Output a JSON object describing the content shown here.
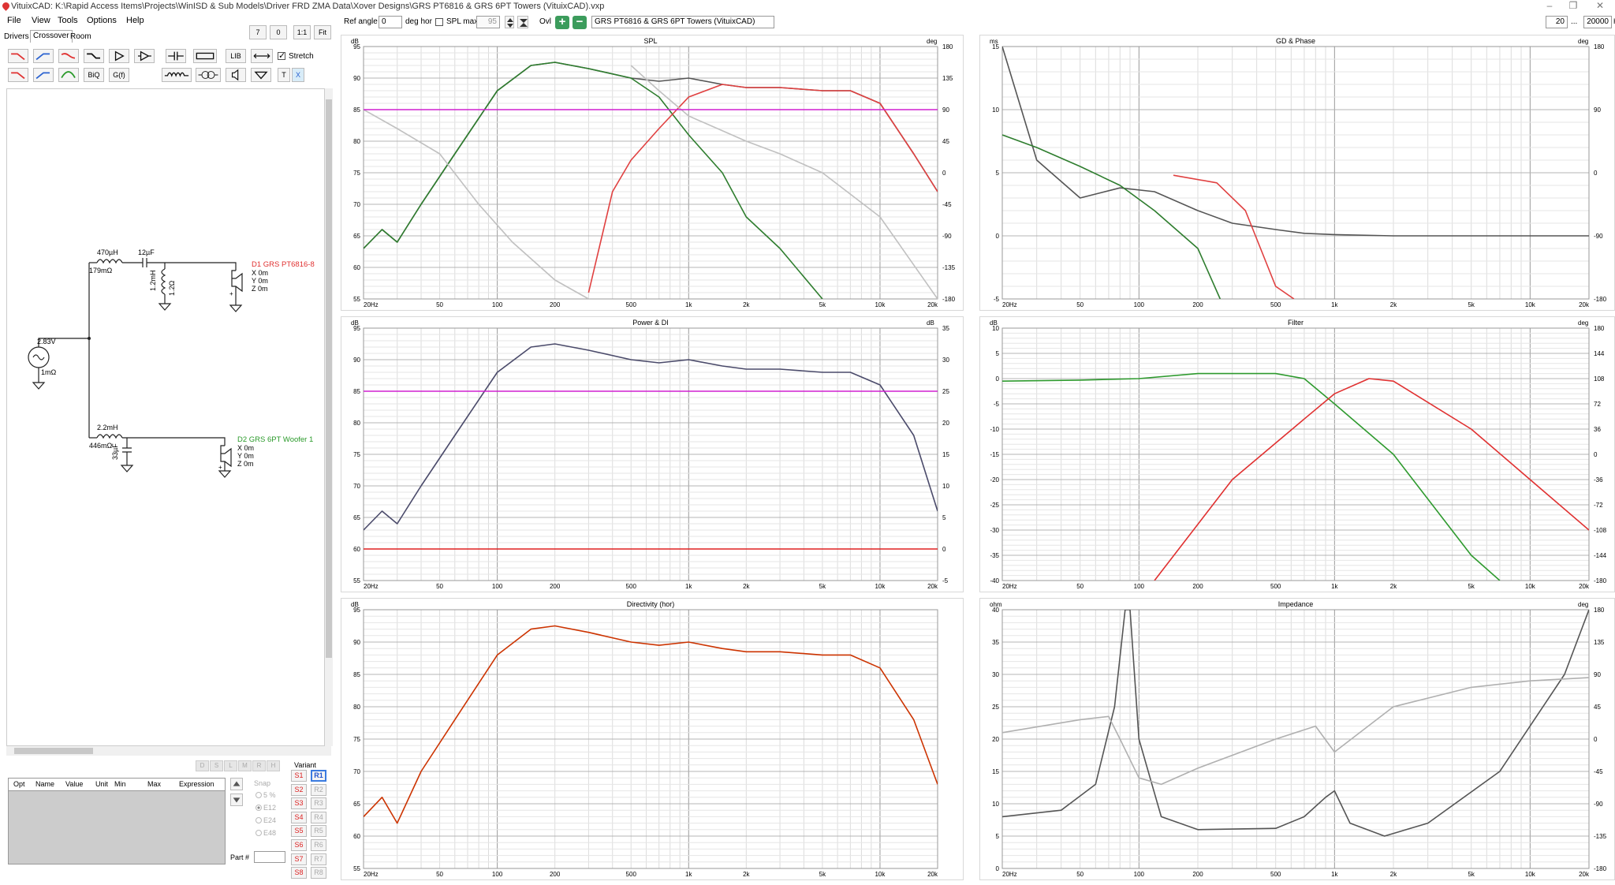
{
  "window": {
    "title": "VituixCAD: K:\\Rapid Access Items\\Projects\\WinISD & Sub Models\\Driver FRD ZMA Data\\Xover Designs\\GRS PT6816 & GRS 6PT Towers (VituixCAD).vxp",
    "minimize": "–",
    "restore": "❐",
    "close": "✕"
  },
  "menu": [
    "File",
    "View",
    "Tools",
    "Options",
    "Help"
  ],
  "tabs": [
    {
      "label": "Drivers"
    },
    {
      "label": "Crossover",
      "active": true
    },
    {
      "label": "Room"
    }
  ],
  "crossover_tools": {
    "row1_labels": [
      "LIB",
      "Stretch"
    ],
    "row2_labels": [
      "BiQ",
      "G(f)",
      "T",
      "X"
    ],
    "stretch_checked": true,
    "icons": [
      "lowpass-1-icon",
      "highpass-1-icon",
      "bandpass-icon",
      "shelf-icon",
      "buffer-icon",
      "amp-icon",
      "capacitor-icon",
      "resistor-icon",
      "lib-icon",
      "wire-icon",
      "lowpass-2-icon",
      "highpass-2-icon",
      "peak-icon",
      "biquad-icon",
      "gf-icon",
      "inductor-icon",
      "transformer-icon",
      "speaker-icon",
      "ground-icon",
      "text-icon",
      "delete-icon"
    ]
  },
  "viewer": {
    "zoom_label": "7",
    "zero_label": "0",
    "oneone_label": "1:1",
    "fit_label": "Fit"
  },
  "schematic": {
    "source": {
      "voltage": "2.83V",
      "resistance": "1mΩ"
    },
    "branch1": {
      "inductor": "470µH",
      "inductor_r": "179mΩ",
      "cap": "12µF",
      "shunt_l": "1.2mH",
      "shunt_r": "1.2Ω",
      "driver_name": "D1 GRS PT6816-8",
      "x": "X 0m",
      "y": "Y 0m",
      "z": "Z 0m",
      "polarity": "+"
    },
    "branch2": {
      "inductor": "2.2mH",
      "inductor_r": "446mΩ",
      "cap": "33µF",
      "driver_name": "D2 GRS 6PT Woofer 1",
      "x": "X 0m",
      "y": "Y 0m",
      "z": "Z 0m",
      "polarity": "+"
    },
    "colors": {
      "driver1": "#e03030",
      "driver2": "#2a9a2a"
    }
  },
  "opt_table": {
    "headers": [
      "Opt",
      "Name",
      "Value",
      "Unit",
      "Min",
      "Max",
      "Expression"
    ]
  },
  "grey_buttons": [
    "D",
    "S",
    "L",
    "M",
    "R",
    "H"
  ],
  "snap": {
    "title": "Snap",
    "options": [
      "5 %",
      "E12",
      "E24",
      "E48"
    ],
    "selected": "E12"
  },
  "part": {
    "label": "Part #"
  },
  "variant": {
    "title": "Variant",
    "s": [
      "S1",
      "S2",
      "S3",
      "S4",
      "S5",
      "S6",
      "S7",
      "S8"
    ],
    "r": [
      "R1",
      "R2",
      "R3",
      "R4",
      "R5",
      "R6",
      "R7",
      "R8"
    ],
    "active_r": "R1"
  },
  "toolbar2": {
    "ref_angle_label": "Ref angle",
    "ref_angle_value": "0",
    "deg_hor_label": "deg hor",
    "spl_max_label": "SPL max",
    "spl_max_value": "95",
    "spl_max_checked": false,
    "ovl_label": "Ovl",
    "overlay_name": "GRS PT6816 & GRS 6PT Towers (VituixCAD)",
    "freq_min": "20",
    "freq_sep": "...",
    "freq_max": "20000",
    "freq_unit": "Hz"
  },
  "x_ticks": [
    "20Hz",
    "50",
    "100",
    "200",
    "500",
    "1k",
    "2k",
    "5k",
    "10k",
    "20k"
  ],
  "charts": {
    "spl": {
      "title": "SPL",
      "left_unit": "dB",
      "right_unit": "deg",
      "left_ticks": [
        "95",
        "90",
        "85",
        "80",
        "75",
        "70",
        "65",
        "60",
        "55"
      ],
      "right_ticks": [
        "180",
        "135",
        "90",
        "45",
        "0",
        "-45",
        "-90",
        "-135",
        "-180"
      ]
    },
    "power": {
      "title": "Power & DI",
      "left_unit": "dB",
      "right_unit": "dB",
      "left_ticks": [
        "95",
        "90",
        "85",
        "80",
        "75",
        "70",
        "65",
        "60",
        "55"
      ],
      "right_ticks": [
        "35",
        "30",
        "25",
        "20",
        "15",
        "10",
        "5",
        "0",
        "-5"
      ]
    },
    "directivity": {
      "title": "Directivity (hor)",
      "left_unit": "dB",
      "right_unit": "",
      "left_ticks": [
        "95",
        "90",
        "85",
        "80",
        "75",
        "70",
        "65",
        "60",
        "55"
      ],
      "right_ticks": []
    },
    "gd": {
      "title": "GD & Phase",
      "left_unit": "ms",
      "right_unit": "deg",
      "left_ticks": [
        "15",
        "10",
        "5",
        "0",
        "-5"
      ],
      "right_ticks": [
        "180",
        "90",
        "0",
        "-90",
        "-180"
      ]
    },
    "filter": {
      "title": "Filter",
      "left_unit": "dB",
      "right_unit": "deg",
      "left_ticks": [
        "10",
        "5",
        "0",
        "-5",
        "-10",
        "-15",
        "-20",
        "-25",
        "-30",
        "-35",
        "-40"
      ],
      "right_ticks": [
        "180",
        "144",
        "108",
        "72",
        "36",
        "0",
        "-36",
        "-72",
        "-108",
        "-144",
        "-180"
      ]
    },
    "impedance": {
      "title": "Impedance",
      "left_unit": "ohm",
      "right_unit": "deg",
      "left_ticks": [
        "40",
        "35",
        "30",
        "25",
        "20",
        "15",
        "10",
        "5",
        "0"
      ],
      "right_ticks": [
        "180",
        "135",
        "90",
        "45",
        "0",
        "-45",
        "-90",
        "-135",
        "-180"
      ]
    }
  },
  "chart_data": [
    {
      "type": "line",
      "title": "SPL",
      "x_scale": "log",
      "xlim": [
        20,
        20000
      ],
      "ylim": [
        55,
        95
      ],
      "y2lim": [
        -180,
        180
      ],
      "series": [
        {
          "color": "#555555",
          "x": [
            20,
            25,
            30,
            40,
            60,
            100,
            150,
            200,
            300,
            500,
            700,
            1000,
            1500,
            2000,
            3000,
            5000,
            7000,
            10000,
            15000,
            20000
          ],
          "values": [
            63,
            66,
            64,
            70,
            78,
            88,
            92,
            92.5,
            91.5,
            90,
            89.5,
            90,
            89,
            88.5,
            88.5,
            88,
            88,
            86,
            78,
            72
          ]
        },
        {
          "color": "#2e7d2e",
          "x": [
            20,
            25,
            30,
            40,
            60,
            100,
            150,
            200,
            300,
            500,
            700,
            1000,
            1500,
            2000,
            3000,
            5000
          ],
          "values": [
            63,
            66,
            64,
            70,
            78,
            88,
            92,
            92.5,
            91.5,
            90,
            87,
            81,
            75,
            68,
            63,
            55
          ]
        },
        {
          "color": "#e04040",
          "x": [
            300,
            400,
            500,
            700,
            1000,
            1500,
            2000,
            3000,
            5000,
            7000,
            10000,
            15000,
            20000
          ],
          "values": [
            56,
            72,
            77,
            82,
            87,
            89,
            88.5,
            88.5,
            88,
            88,
            86,
            78,
            72
          ]
        },
        {
          "color": "#c0c0c0",
          "x": [
            20,
            30,
            50,
            80,
            120,
            200,
            300
          ],
          "values": [
            85,
            82,
            78,
            70,
            64,
            58,
            55
          ]
        },
        {
          "color": "#c0c0c0",
          "x": [
            500,
            700,
            1000,
            2000,
            3000,
            5000,
            10000,
            20000
          ],
          "values": [
            92,
            88,
            84,
            80,
            78,
            75,
            68,
            55
          ]
        },
        {
          "color": "#d020d0",
          "x": [
            20,
            20000
          ],
          "values": [
            85,
            85
          ]
        }
      ]
    },
    {
      "type": "line",
      "title": "Power & DI",
      "x_scale": "log",
      "xlim": [
        20,
        20000
      ],
      "ylim": [
        55,
        95
      ],
      "series": [
        {
          "color": "#4a4a6a",
          "x": [
            20,
            25,
            30,
            40,
            60,
            100,
            150,
            200,
            300,
            500,
            700,
            1000,
            1500,
            2000,
            3000,
            5000,
            7000,
            10000,
            15000,
            20000
          ],
          "values": [
            63,
            66,
            64,
            70,
            78,
            88,
            92,
            92.5,
            91.5,
            90,
            89.5,
            90,
            89,
            88.5,
            88.5,
            88,
            88,
            86,
            78,
            66
          ]
        },
        {
          "color": "#d020d0",
          "x": [
            20,
            20000
          ],
          "values": [
            85,
            85
          ]
        },
        {
          "color": "#e02020",
          "x": [
            20,
            20000
          ],
          "values": [
            60,
            60
          ]
        }
      ]
    },
    {
      "type": "line",
      "title": "Directivity (hor)",
      "x_scale": "log",
      "xlim": [
        20,
        20000
      ],
      "ylim": [
        55,
        95
      ],
      "series": [
        {
          "color": "#cc3300",
          "x": [
            20,
            25,
            30,
            40,
            60,
            100,
            150,
            200,
            300,
            500,
            700,
            1000,
            1500,
            2000,
            3000,
            5000,
            7000,
            10000,
            15000,
            20000
          ],
          "values": [
            63,
            66,
            62,
            70,
            78,
            88,
            92,
            92.5,
            91.5,
            90,
            89.5,
            90,
            89,
            88.5,
            88.5,
            88,
            88,
            86,
            78,
            68
          ]
        }
      ]
    },
    {
      "type": "line",
      "title": "GD & Phase",
      "x_scale": "log",
      "xlim": [
        20,
        20000
      ],
      "ylim": [
        -5,
        15
      ],
      "series": [
        {
          "color": "#555555",
          "x": [
            20,
            30,
            50,
            80,
            120,
            200,
            300,
            500,
            700,
            1000,
            2000,
            5000,
            10000,
            20000
          ],
          "values": [
            15,
            6,
            3,
            3.8,
            3.5,
            2,
            1,
            0.5,
            0.2,
            0.1,
            0,
            0,
            0,
            0
          ]
        },
        {
          "color": "#2e7d2e",
          "x": [
            20,
            30,
            50,
            80,
            120,
            200,
            260
          ],
          "values": [
            8,
            7,
            5.5,
            4,
            2,
            -1,
            -5
          ]
        },
        {
          "color": "#e04040",
          "x": [
            150,
            250,
            350,
            500,
            620
          ],
          "values": [
            4.8,
            4.2,
            2,
            -4,
            -5
          ]
        }
      ]
    },
    {
      "type": "line",
      "title": "Filter",
      "x_scale": "log",
      "xlim": [
        20,
        20000
      ],
      "ylim": [
        -40,
        10
      ],
      "series": [
        {
          "color": "#2e9a2e",
          "x": [
            20,
            50,
            100,
            200,
            500,
            700,
            1000,
            2000,
            5000,
            7000
          ],
          "values": [
            -0.5,
            -0.3,
            0,
            1,
            1,
            0,
            -5,
            -15,
            -35,
            -40
          ]
        },
        {
          "color": "#e03030",
          "x": [
            120,
            300,
            700,
            1000,
            1500,
            2000,
            5000,
            10000,
            20000
          ],
          "values": [
            -40,
            -20,
            -8,
            -3,
            0,
            -0.5,
            -10,
            -20,
            -30
          ]
        }
      ]
    },
    {
      "type": "line",
      "title": "Impedance",
      "x_scale": "log",
      "xlim": [
        20,
        20000
      ],
      "ylim": [
        0,
        40
      ],
      "series": [
        {
          "color": "#555555",
          "x": [
            20,
            40,
            60,
            75,
            85,
            90,
            100,
            130,
            200,
            500,
            700,
            900,
            1000,
            1200,
            1800,
            3000,
            7000,
            15000,
            20000
          ],
          "values": [
            8,
            9,
            13,
            25,
            40,
            40,
            20,
            8,
            6,
            6.2,
            8,
            11,
            12,
            7,
            5,
            7,
            15,
            30,
            40
          ]
        },
        {
          "color": "#b0b0b0",
          "x": [
            20,
            50,
            70,
            80,
            100,
            130,
            200,
            500,
            800,
            1000,
            2000,
            5000,
            10000,
            20000
          ],
          "values": [
            21,
            23,
            23.5,
            20,
            14,
            13,
            15.5,
            20,
            22,
            18,
            25,
            28,
            29,
            29.5
          ]
        }
      ]
    }
  ]
}
